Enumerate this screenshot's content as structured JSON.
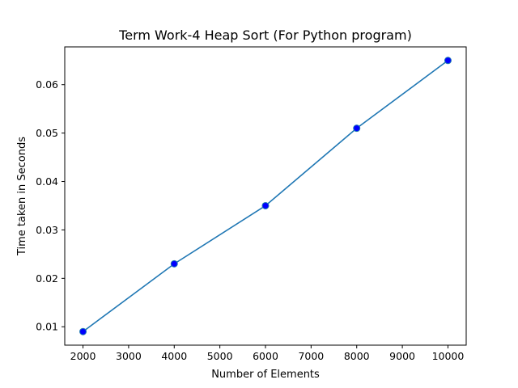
{
  "chart_data": {
    "type": "line",
    "title": "Term Work-4 Heap Sort (For Python program)",
    "xlabel": "Number of Elements",
    "ylabel": "Time taken in Seconds",
    "x": [
      2000,
      4000,
      6000,
      8000,
      10000
    ],
    "series": [
      {
        "values": [
          0.009,
          0.023,
          0.035,
          0.051,
          0.065
        ],
        "line_color": "#1f77b4",
        "marker_color": "#0000ff"
      }
    ],
    "xlim": [
      1600,
      10400
    ],
    "ylim": [
      0.0062,
      0.0678
    ],
    "xticks": [
      2000,
      3000,
      4000,
      5000,
      6000,
      7000,
      8000,
      9000,
      10000
    ],
    "xtick_labels": [
      "2000",
      "3000",
      "4000",
      "5000",
      "6000",
      "7000",
      "8000",
      "9000",
      "10000"
    ],
    "yticks": [
      0.01,
      0.02,
      0.03,
      0.04,
      0.05,
      0.06
    ],
    "ytick_labels": [
      "0.01",
      "0.02",
      "0.03",
      "0.04",
      "0.05",
      "0.06"
    ],
    "grid": false,
    "legend": false
  }
}
